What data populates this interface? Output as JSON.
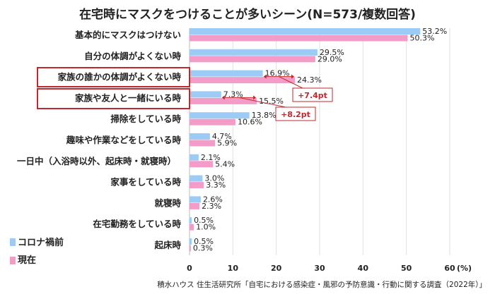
{
  "chart_data": {
    "type": "bar",
    "orientation": "horizontal",
    "title": "在宅時にマスクをつけることが多いシーン(N=573/複数回答)",
    "categories": [
      "基本的にマスクはつけない",
      "自分の体調がよくない時",
      "家族の誰かの体調がよくない時",
      "家族や友人と一緒にいる時",
      "掃除をしている時",
      "趣味や作業などをしている時",
      "一日中（入浴時以外、起床時・就寝時）",
      "家事をしている時",
      "就寝時",
      "在宅勤務をしている時",
      "起床時"
    ],
    "series": [
      {
        "name": "コロナ禍前",
        "color": "#9ccbf5",
        "values": [
          53.2,
          29.5,
          16.9,
          7.3,
          13.8,
          4.7,
          2.1,
          3.0,
          2.6,
          0.5,
          0.5
        ]
      },
      {
        "name": "現在",
        "color": "#f49cc8",
        "values": [
          50.3,
          29.0,
          24.3,
          15.5,
          10.6,
          5.9,
          5.4,
          3.3,
          2.3,
          1.0,
          0.3
        ]
      }
    ],
    "xlim": [
      0,
      60
    ],
    "xticks": [
      "0",
      "10",
      "20",
      "30",
      "40",
      "50",
      "60"
    ],
    "xunit": "(%)",
    "grid": true,
    "legend_position": "bottom-left",
    "highlighted_categories": [
      2,
      3
    ],
    "annotations": [
      {
        "category": 2,
        "text": "+7.4pt"
      },
      {
        "category": 3,
        "text": "+8.2pt"
      }
    ],
    "source": "積水ハウス 住生活研究所「自宅における感染症・風邪の予防意識・行動に関する調査（2022年）」",
    "highlight_color": "#c0282d"
  }
}
